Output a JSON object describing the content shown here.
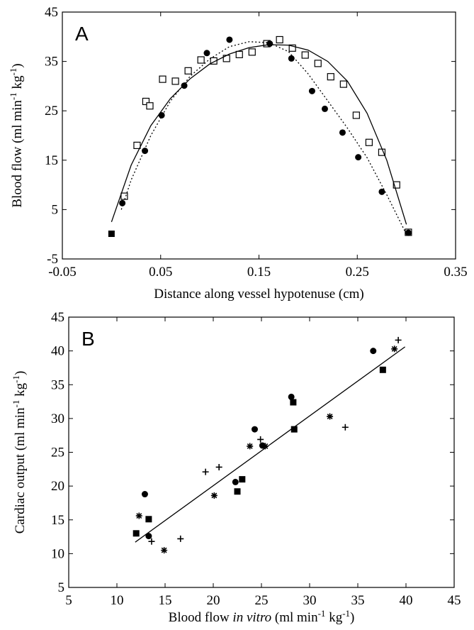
{
  "chart_data": [
    {
      "type": "scatter",
      "panel": "A",
      "xlabel": [
        {
          "text": "Distance along vessel hypotenuse (cm)"
        }
      ],
      "ylabel": [
        {
          "text": "Blood flow (ml min"
        },
        {
          "text": "-1",
          "style": "sup"
        },
        {
          "text": " kg"
        },
        {
          "text": "-1",
          "style": "sup"
        },
        {
          "text": ")"
        }
      ],
      "xlim": [
        -0.05,
        0.35
      ],
      "ylim": [
        -5,
        45
      ],
      "xticks": [
        -0.05,
        0.05,
        0.15,
        0.25,
        0.35
      ],
      "yticks": [
        -5,
        5,
        15,
        25,
        35,
        45
      ],
      "series": [
        {
          "marker": "open-square",
          "color": "#000000",
          "x": [
            0.013,
            0.026,
            0.035,
            0.039,
            0.052,
            0.065,
            0.078,
            0.091,
            0.104,
            0.117,
            0.13,
            0.143,
            0.158,
            0.171,
            0.184,
            0.197,
            0.21,
            0.223,
            0.236,
            0.249,
            0.262,
            0.275,
            0.29,
            0.302
          ],
          "values": [
            7.7,
            18.0,
            26.9,
            26.0,
            31.4,
            31.0,
            33.1,
            35.3,
            35.1,
            35.6,
            36.4,
            36.9,
            38.6,
            39.4,
            37.7,
            36.3,
            34.6,
            31.9,
            30.4,
            24.1,
            18.6,
            16.6,
            10.0,
            0.4
          ]
        },
        {
          "marker": "circle",
          "color": "#000000",
          "x": [
            0.011,
            0.034,
            0.051,
            0.074,
            0.097,
            0.12,
            0.161,
            0.183,
            0.204,
            0.217,
            0.235,
            0.251,
            0.275,
            0.302
          ],
          "values": [
            6.3,
            16.9,
            24.1,
            30.1,
            36.7,
            39.4,
            38.6,
            35.6,
            29.0,
            25.4,
            20.6,
            15.6,
            8.6,
            0.3
          ]
        },
        {
          "marker": "square",
          "color": "#000000",
          "x": [
            0.0
          ],
          "values": [
            0.1
          ]
        },
        {
          "line": "solid",
          "color": "#000000",
          "x": [
            0.0,
            0.02,
            0.04,
            0.06,
            0.08,
            0.1,
            0.12,
            0.14,
            0.16,
            0.18,
            0.2,
            0.22,
            0.24,
            0.26,
            0.28,
            0.3
          ],
          "values": [
            2.5,
            14,
            22,
            27.5,
            31.5,
            34.5,
            36.5,
            37.8,
            38.4,
            38.3,
            37.3,
            35,
            31,
            24.5,
            15,
            2
          ]
        },
        {
          "line": "dotted",
          "color": "#000000",
          "x": [
            0.01,
            0.02,
            0.04,
            0.06,
            0.08,
            0.1,
            0.12,
            0.14,
            0.16,
            0.18,
            0.2,
            0.22,
            0.24,
            0.26,
            0.28,
            0.3
          ],
          "values": [
            5,
            11,
            20,
            27,
            32,
            35.5,
            38,
            39,
            38.8,
            37,
            32.5,
            27,
            21.5,
            15.5,
            8,
            0
          ]
        }
      ]
    },
    {
      "type": "scatter",
      "panel": "B",
      "xlabel": [
        {
          "text": "Blood flow "
        },
        {
          "text": "in vitro",
          "style": "italic"
        },
        {
          "text": " (ml min"
        },
        {
          "text": "-1",
          "style": "sup"
        },
        {
          "text": " kg"
        },
        {
          "text": "-1",
          "style": "sup"
        },
        {
          "text": ")"
        }
      ],
      "ylabel": [
        {
          "text": "Cardiac output (ml min"
        },
        {
          "text": "-1",
          "style": "sup"
        },
        {
          "text": " kg"
        },
        {
          "text": "-1",
          "style": "sup"
        },
        {
          "text": ")"
        }
      ],
      "xlim": [
        5,
        45
      ],
      "ylim": [
        5,
        45
      ],
      "xticks": [
        5,
        10,
        15,
        20,
        25,
        30,
        35,
        40,
        45
      ],
      "yticks": [
        5,
        10,
        15,
        20,
        25,
        30,
        35,
        40,
        45
      ],
      "series": [
        {
          "marker": "circle",
          "color": "#000000",
          "x": [
            12.9,
            13.3,
            22.3,
            24.3,
            25.1,
            28.1,
            36.6
          ],
          "values": [
            18.8,
            12.6,
            20.6,
            28.4,
            26.0,
            33.2,
            40.0
          ]
        },
        {
          "marker": "square",
          "color": "#000000",
          "x": [
            12.0,
            13.3,
            22.5,
            23.0,
            28.3,
            28.4,
            37.6
          ],
          "values": [
            13.0,
            15.1,
            19.2,
            21.0,
            32.4,
            28.4,
            37.2
          ]
        },
        {
          "marker": "asterisk",
          "color": "#000000",
          "x": [
            12.3,
            14.9,
            20.1,
            23.8,
            25.4,
            32.1,
            38.8
          ],
          "values": [
            15.6,
            10.5,
            18.6,
            25.9,
            25.9,
            30.3,
            40.3
          ]
        },
        {
          "marker": "plus",
          "color": "#000000",
          "x": [
            13.6,
            16.6,
            19.2,
            20.6,
            24.9,
            33.7,
            39.2
          ],
          "values": [
            11.8,
            12.2,
            22.1,
            22.8,
            26.9,
            28.7,
            41.6
          ]
        },
        {
          "line": "solid",
          "color": "#000000",
          "x": [
            11.9,
            39.9
          ],
          "values": [
            11.7,
            40.6
          ]
        }
      ]
    }
  ]
}
